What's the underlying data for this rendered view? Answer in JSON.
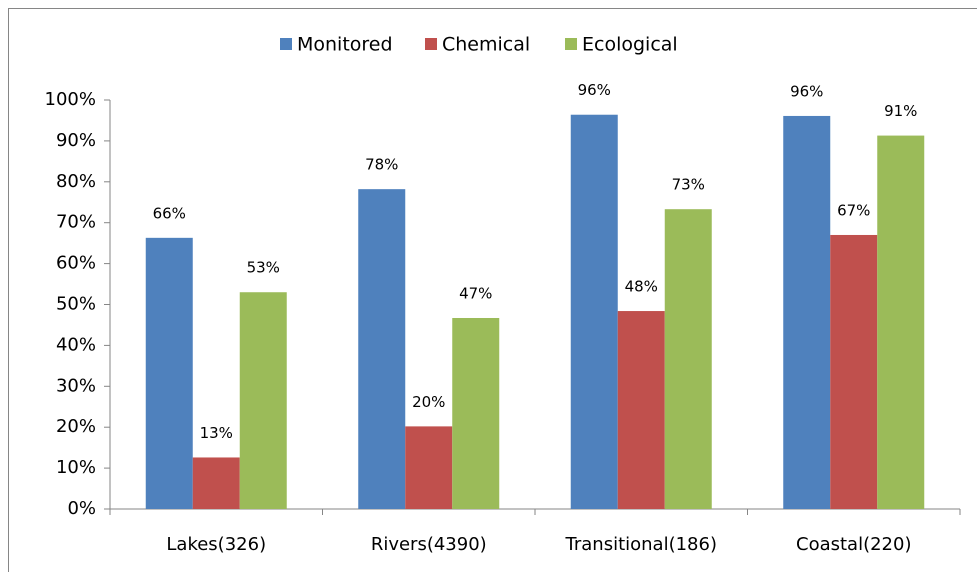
{
  "chart_data": {
    "type": "bar",
    "categories": [
      "Lakes(326)",
      "Rivers(4390)",
      "Transitional(186)",
      "Coastal(220)"
    ],
    "series": [
      {
        "name": "Monitored",
        "color": "#4f81bd",
        "values": [
          66.3,
          78.2,
          96.4,
          96.1
        ],
        "value_labels": [
          "66%",
          "78%",
          "96%",
          "96%"
        ]
      },
      {
        "name": "Chemical",
        "color": "#c0504d",
        "values": [
          12.6,
          20.2,
          48.4,
          67.0
        ],
        "value_labels": [
          "13%",
          "20%",
          "48%",
          "67%"
        ]
      },
      {
        "name": "Ecological",
        "color": "#9bbb59",
        "values": [
          53.0,
          46.7,
          73.3,
          91.3
        ],
        "value_labels": [
          "53%",
          "47%",
          "73%",
          "91%"
        ]
      }
    ],
    "ylim": [
      0,
      100
    ],
    "yticks": [
      {
        "value": 0,
        "label": "0%"
      },
      {
        "value": 10,
        "label": "10%"
      },
      {
        "value": 20,
        "label": "20%"
      },
      {
        "value": 30,
        "label": "30%"
      },
      {
        "value": 40,
        "label": "40%"
      },
      {
        "value": 50,
        "label": "50%"
      },
      {
        "value": 60,
        "label": "60%"
      },
      {
        "value": 70,
        "label": "70%"
      },
      {
        "value": 80,
        "label": "80%"
      },
      {
        "value": 90,
        "label": "90%"
      },
      {
        "value": 100,
        "label": "100%"
      }
    ],
    "grid": false,
    "legend": "top"
  }
}
